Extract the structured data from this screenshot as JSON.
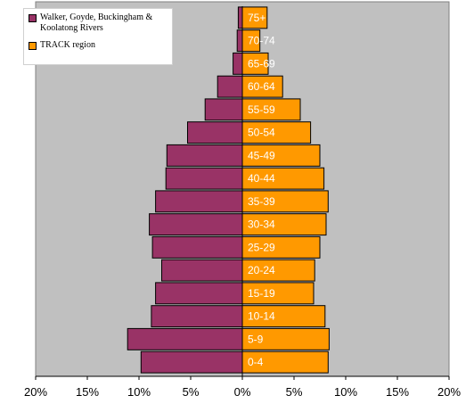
{
  "chart_data": {
    "type": "bar",
    "orientation": "horizontal-population-pyramid",
    "categories": [
      "0-4",
      "5-9",
      "10-14",
      "15-19",
      "20-24",
      "25-29",
      "30-34",
      "35-39",
      "40-44",
      "45-49",
      "50-54",
      "55-59",
      "60-64",
      "65-69",
      "70-74",
      "75+"
    ],
    "series": [
      {
        "name": "Walker, Goyde, Buckingham & Koolatong Rivers",
        "direction": "left",
        "color": "#993366",
        "values": [
          9.8,
          11.1,
          8.8,
          8.4,
          7.8,
          8.7,
          9.0,
          8.4,
          7.4,
          7.3,
          5.3,
          3.6,
          2.4,
          0.9,
          0.5,
          0.4
        ]
      },
      {
        "name": "TRACK region",
        "direction": "right",
        "color": "#ff9900",
        "values": [
          8.3,
          8.4,
          8.0,
          6.9,
          7.0,
          7.5,
          8.1,
          8.3,
          7.9,
          7.5,
          6.6,
          5.6,
          3.9,
          2.5,
          1.7,
          2.4
        ]
      }
    ],
    "xlim": [
      -20,
      20
    ],
    "xticks": [
      "20%",
      "15%",
      "10%",
      "5%",
      "0%",
      "5%",
      "10%",
      "15%",
      "20%"
    ],
    "legend_position": "top-left",
    "plot_background": "#c0c0c0",
    "grid": false
  }
}
